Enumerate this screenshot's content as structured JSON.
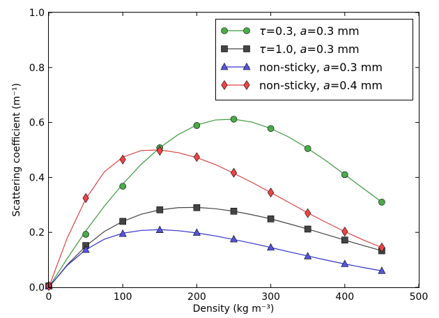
{
  "chart_data": {
    "type": "line",
    "xlabel": "Density (kg m⁻³)",
    "ylabel": "Scattering coefficient (m⁻¹)",
    "xlim": [
      0,
      500
    ],
    "ylim": [
      0.0,
      1.0
    ],
    "xticks": [
      0,
      100,
      200,
      300,
      400,
      500
    ],
    "yticks": [
      0.0,
      0.2,
      0.4,
      0.6,
      0.8,
      1.0
    ],
    "xtick_labels": [
      "0",
      "100",
      "200",
      "300",
      "400",
      "500"
    ],
    "ytick_labels": [
      "0.0",
      "0.2",
      "0.4",
      "0.6",
      "0.8",
      "1.0"
    ],
    "grid": false,
    "legend_position": "top-right",
    "series": [
      {
        "name": "τ=0.3, a=0.3 mm",
        "legend_parts": [
          {
            "t": "τ",
            "italic": true
          },
          {
            "t": "=0.3, ",
            "italic": false
          },
          {
            "t": "a",
            "italic": true
          },
          {
            "t": "=0.3 mm",
            "italic": false
          }
        ],
        "marker": "circle",
        "fill": "#4aaa4a",
        "line": "#3a9a3a",
        "x": [
          0,
          50,
          100,
          150,
          200,
          250,
          300,
          350,
          400,
          450
        ],
        "y": [
          0.005,
          0.193,
          0.368,
          0.508,
          0.589,
          0.612,
          0.578,
          0.505,
          0.41,
          0.31
        ],
        "curve_x": [
          0,
          25,
          50,
          75,
          100,
          125,
          150,
          175,
          200,
          225,
          250,
          275,
          300,
          325,
          350,
          375,
          400,
          425,
          450
        ],
        "curve_y": [
          0.0,
          0.105,
          0.205,
          0.295,
          0.376,
          0.448,
          0.508,
          0.556,
          0.591,
          0.609,
          0.612,
          0.601,
          0.578,
          0.546,
          0.505,
          0.46,
          0.41,
          0.36,
          0.31
        ]
      },
      {
        "name": "τ=1.0, a=0.3 mm",
        "legend_parts": [
          {
            "t": "τ",
            "italic": true
          },
          {
            "t": "=1.0, ",
            "italic": false
          },
          {
            "t": "a",
            "italic": true
          },
          {
            "t": "=0.3 mm",
            "italic": false
          }
        ],
        "marker": "square",
        "fill": "#444444",
        "line": "#444444",
        "x": [
          0,
          50,
          100,
          150,
          200,
          250,
          300,
          350,
          400,
          450
        ],
        "y": [
          0.005,
          0.152,
          0.24,
          0.282,
          0.29,
          0.277,
          0.249,
          0.212,
          0.172,
          0.133
        ],
        "curve_x": [
          0,
          25,
          50,
          75,
          100,
          125,
          150,
          175,
          200,
          225,
          250,
          275,
          300,
          325,
          350,
          375,
          400,
          425,
          450
        ],
        "curve_y": [
          0.0,
          0.082,
          0.15,
          0.203,
          0.24,
          0.266,
          0.282,
          0.29,
          0.291,
          0.286,
          0.277,
          0.264,
          0.249,
          0.231,
          0.212,
          0.192,
          0.172,
          0.152,
          0.133
        ]
      },
      {
        "name": "non-sticky, a=0.3 mm",
        "legend_parts": [
          {
            "t": "non-sticky, ",
            "italic": false
          },
          {
            "t": "a",
            "italic": true
          },
          {
            "t": "=0.3 mm",
            "italic": false
          }
        ],
        "marker": "triangle",
        "fill": "#5555dd",
        "line": "#3333cc",
        "x": [
          0,
          50,
          100,
          150,
          200,
          250,
          300,
          350,
          400,
          450
        ],
        "y": [
          0.005,
          0.137,
          0.195,
          0.209,
          0.199,
          0.175,
          0.145,
          0.113,
          0.085,
          0.06
        ],
        "curve_x": [
          0,
          25,
          50,
          75,
          100,
          125,
          150,
          175,
          200,
          225,
          250,
          275,
          300,
          325,
          350,
          375,
          400,
          425,
          450
        ],
        "curve_y": [
          0.0,
          0.08,
          0.137,
          0.175,
          0.197,
          0.207,
          0.21,
          0.206,
          0.198,
          0.187,
          0.174,
          0.16,
          0.145,
          0.129,
          0.114,
          0.099,
          0.085,
          0.072,
          0.06
        ]
      },
      {
        "name": "non-sticky, a=0.4 mm",
        "legend_parts": [
          {
            "t": "non-sticky, ",
            "italic": false
          },
          {
            "t": "a",
            "italic": true
          },
          {
            "t": "=0.4 mm",
            "italic": false
          }
        ],
        "marker": "diamond",
        "fill": "#ee4444",
        "line": "#e04040",
        "x": [
          0,
          50,
          100,
          150,
          200,
          250,
          300,
          350,
          400,
          450
        ],
        "y": [
          0.005,
          0.325,
          0.465,
          0.497,
          0.474,
          0.417,
          0.345,
          0.27,
          0.203,
          0.145
        ],
        "curve_x": [
          0,
          25,
          50,
          75,
          100,
          125,
          150,
          175,
          200,
          225,
          250,
          275,
          300,
          325,
          350,
          375,
          400,
          425,
          450
        ],
        "curve_y": [
          0.0,
          0.18,
          0.322,
          0.42,
          0.474,
          0.498,
          0.5,
          0.49,
          0.472,
          0.447,
          0.415,
          0.381,
          0.345,
          0.308,
          0.271,
          0.236,
          0.203,
          0.172,
          0.145
        ]
      }
    ]
  }
}
